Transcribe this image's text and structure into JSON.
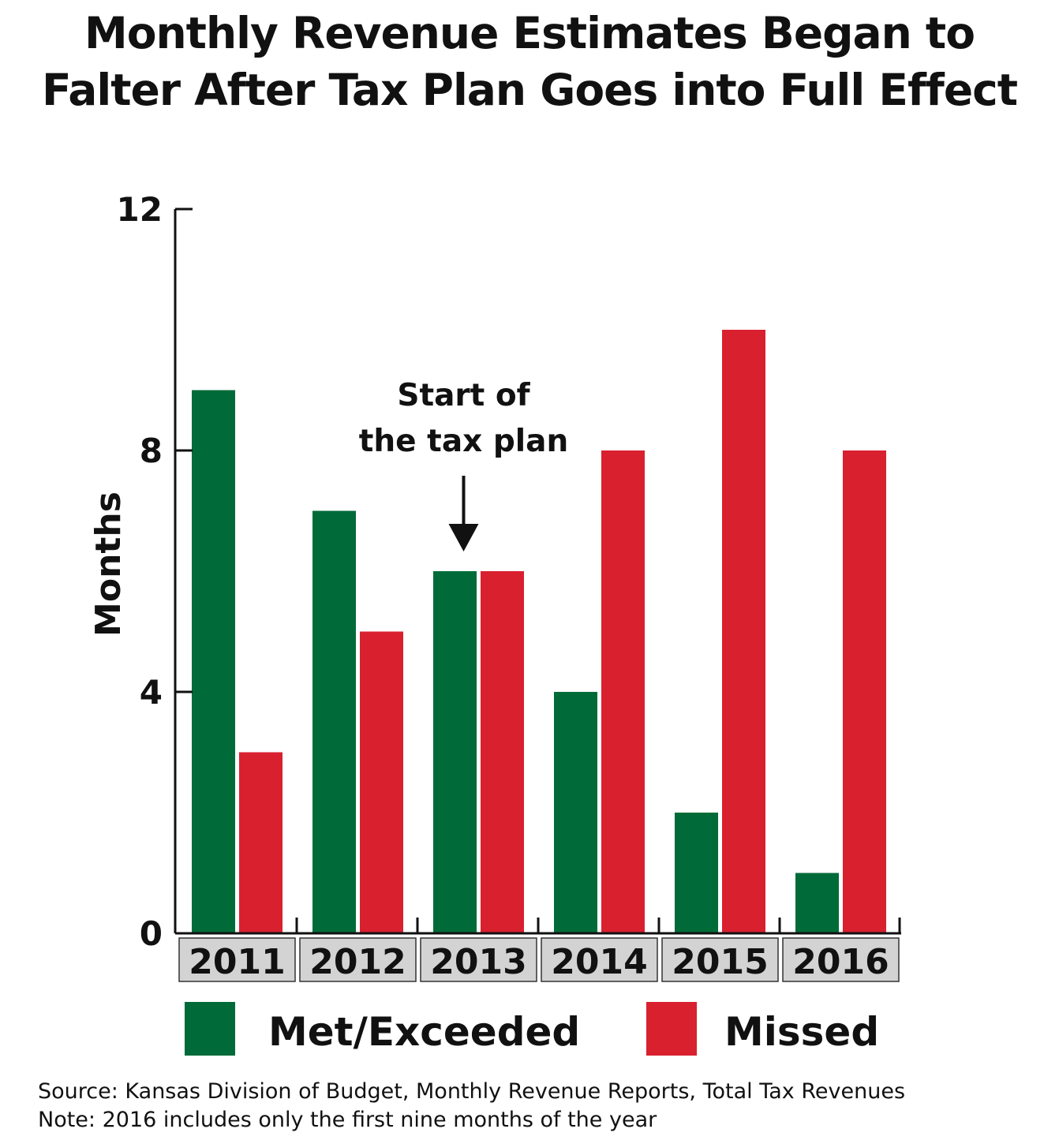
{
  "title_lines": [
    "Monthly Revenue Estimates Began to",
    "Falter After Tax Plan Goes into Full Effect"
  ],
  "chart_data": {
    "type": "bar",
    "categories": [
      "2011",
      "2012",
      "2013",
      "2014",
      "2015",
      "2016"
    ],
    "series": [
      {
        "name": "Met/Exceeded",
        "color": "#006b38",
        "values": [
          9,
          7,
          6,
          4,
          2,
          1
        ]
      },
      {
        "name": "Missed",
        "color": "#d9202f",
        "values": [
          3,
          5,
          6,
          8,
          10,
          8
        ]
      }
    ],
    "ylabel": "Months",
    "xlabel": "",
    "ylim": [
      0,
      12
    ],
    "yticks": [
      0,
      4,
      8,
      12
    ],
    "grid": false,
    "legend_position": "bottom",
    "category_label_background": "#d3d3d3",
    "annotation": {
      "text_lines": [
        "Start of",
        "the tax plan"
      ],
      "category": "2013"
    }
  },
  "footer": {
    "source": "Source: Kansas Division of Budget, Monthly Revenue Reports, Total Tax Revenues",
    "note": "Note: 2016 includes only the first nine months of the year"
  }
}
